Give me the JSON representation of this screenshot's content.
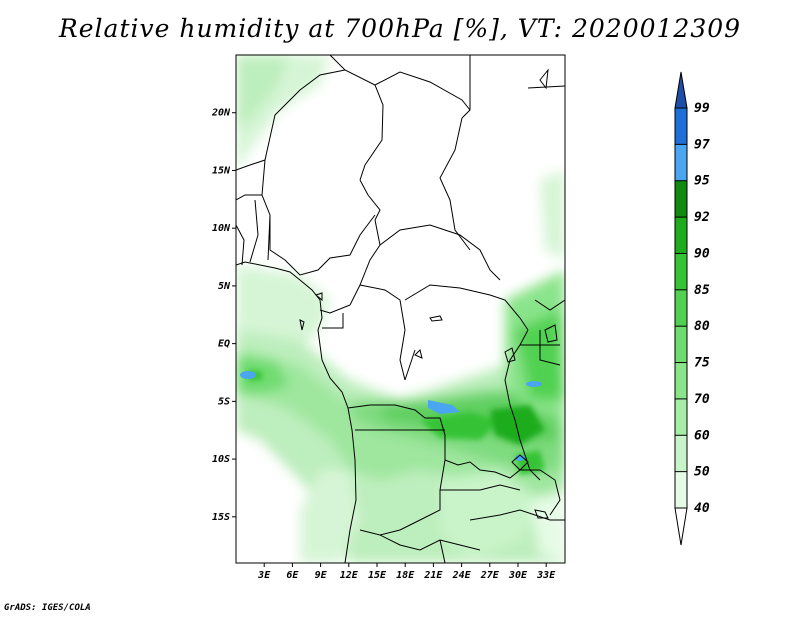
{
  "title": "Relative humidity at 700hPa [%], VT: 2020012309",
  "credit": "GrADS: IGES/COLA",
  "lat_labels": [
    "20N",
    "15N",
    "10N",
    "5N",
    "EQ",
    "5S",
    "10S",
    "15S"
  ],
  "lat_values": [
    20,
    15,
    10,
    5,
    0,
    -5,
    -10,
    -15
  ],
  "lon_labels": [
    "3E",
    "6E",
    "9E",
    "12E",
    "15E",
    "18E",
    "21E",
    "24E",
    "27E",
    "30E",
    "33E"
  ],
  "lon_values": [
    3,
    6,
    9,
    12,
    15,
    18,
    21,
    24,
    27,
    30,
    33
  ],
  "extent": {
    "lon_min": 0,
    "lon_max": 35,
    "lat_min": -19,
    "lat_max": 25
  },
  "colorbar": {
    "labels": [
      "40",
      "50",
      "60",
      "70",
      "75",
      "80",
      "85",
      "90",
      "92",
      "95",
      "97",
      "99"
    ],
    "colors": [
      "#ffffff",
      "#e6fbe6",
      "#c9f4c9",
      "#a6eda6",
      "#8ae48a",
      "#6edc6e",
      "#51d151",
      "#36c336",
      "#1eac1e",
      "#128a12",
      "#4aa6f0",
      "#1e6fd8",
      "#1e4fa8"
    ]
  },
  "icons": {
    "lower_arrow": "triangle-down-icon",
    "upper_arrow": "triangle-up-icon"
  }
}
